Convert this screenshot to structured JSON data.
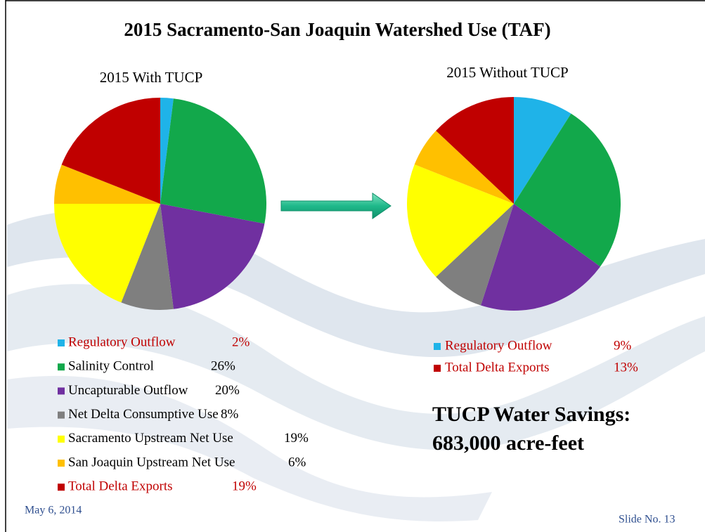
{
  "title": "2015 Sacramento-San Joaquin Watershed Use (TAF)",
  "chart_data": [
    {
      "type": "pie",
      "title": "2015 With TUCP",
      "categories": [
        "Regulatory Outflow",
        "Salinity Control",
        "Uncapturable Outflow",
        "Net Delta Consumptive Use",
        "Sacramento Upstream Net Use",
        "San Joaquin Upstream Net Use",
        "Total Delta Exports"
      ],
      "values": [
        2,
        26,
        20,
        8,
        19,
        6,
        19
      ],
      "value_labels": [
        "2%",
        "26%",
        "20%",
        "8%",
        "19%",
        "6%",
        "19%"
      ],
      "colors": [
        "#1fb3e8",
        "#12a84b",
        "#7030a0",
        "#7f7f7f",
        "#ffff00",
        "#ffc000",
        "#c00000"
      ]
    },
    {
      "type": "pie",
      "title": "2015 Without TUCP",
      "categories": [
        "Regulatory Outflow",
        null,
        null,
        null,
        null,
        null,
        "Total Delta Exports"
      ],
      "values": [
        9,
        26,
        20,
        8,
        18,
        6,
        13
      ],
      "value_labels": [
        "9%",
        null,
        null,
        null,
        null,
        null,
        "13%"
      ],
      "colors": [
        "#1fb3e8",
        "#12a84b",
        "#7030a0",
        "#7f7f7f",
        "#ffff00",
        "#ffc000",
        "#c00000"
      ]
    }
  ],
  "savings": [
    "TUCP Water Savings:",
    "683,000 acre-feet"
  ],
  "date": "May 6, 2014",
  "slide_number": "Slide No. 13"
}
